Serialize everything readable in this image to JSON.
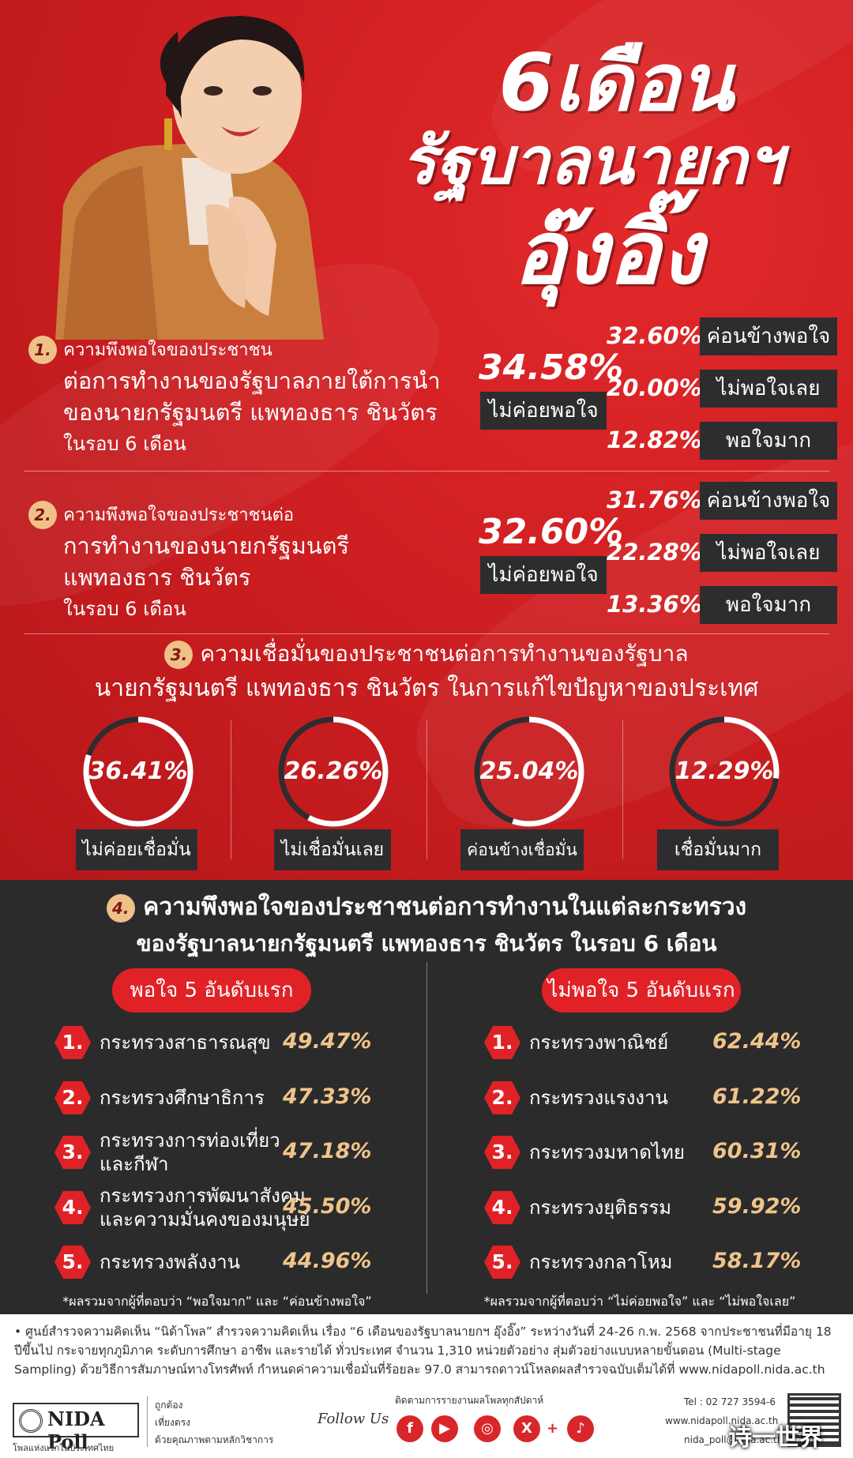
{
  "header": {
    "line1": "6เดือน",
    "line2": "รัฐบาลนายกฯ",
    "line3": "อุ๊งอิ๊ง"
  },
  "q1": {
    "num": "1.",
    "l1": "ความพึงพอใจของประชาชน",
    "l2": "ต่อการทำงานของรัฐบาลภายใต้การนำ",
    "l3": "ของนายกรัฐมนตรี แพทองธาร ชินวัตร",
    "l4": "ในรอบ 6 เดือน",
    "main_pct": "34.58%",
    "main_label": "ไม่ค่อยพอใจ",
    "items": [
      {
        "pct": "32.60%",
        "label": "ค่อนข้างพอใจ"
      },
      {
        "pct": "20.00%",
        "label": "ไม่พอใจเลย"
      },
      {
        "pct": "12.82%",
        "label": "พอใจมาก"
      }
    ]
  },
  "q2": {
    "num": "2.",
    "l1": "ความพึงพอใจของประชาชนต่อ",
    "l2": "การทำงานของนายกรัฐมนตรี",
    "l3": "แพทองธาร ชินวัตร",
    "l4": "ในรอบ 6 เดือน",
    "main_pct": "32.60%",
    "main_label": "ไม่ค่อยพอใจ",
    "items": [
      {
        "pct": "31.76%",
        "label": "ค่อนข้างพอใจ"
      },
      {
        "pct": "22.28%",
        "label": "ไม่พอใจเลย"
      },
      {
        "pct": "13.36%",
        "label": "พอใจมาก"
      }
    ]
  },
  "q3": {
    "num": "3.",
    "l1": "ความเชื่อมั่นของประชาชนต่อการทำงานของรัฐบาล",
    "l2": "นายกรัฐมนตรี แพทองธาร ชินวัตร ในการแก้ไขปัญหาของประเทศ",
    "items": [
      {
        "pct": "36.41%",
        "value": 36.41,
        "label": "ไม่ค่อยเชื่อมั่น"
      },
      {
        "pct": "26.26%",
        "value": 26.26,
        "label": "ไม่เชื่อมั่นเลย"
      },
      {
        "pct": "25.04%",
        "value": 25.04,
        "label": "ค่อนข้างเชื่อมั่น"
      },
      {
        "pct": "12.29%",
        "value": 12.29,
        "label": "เชื่อมั่นมาก"
      }
    ]
  },
  "q4": {
    "num": "4.",
    "l1": "ความพึงพอใจของประชาชนต่อการทำงานในแต่ละกระทรวง",
    "l2": "ของรัฐบาลนายกรัฐมนตรี แพทองธาร ชินวัตร ในรอบ 6 เดือน",
    "left": {
      "title": "พอใจ 5 อันดับแรก",
      "note": "*ผลรวมจากผู้ที่ตอบว่า “พอใจมาก” และ “ค่อนข้างพอใจ”",
      "items": [
        {
          "n": "1.",
          "name": "กระทรวงสาธารณสุข",
          "pct": "49.47%"
        },
        {
          "n": "2.",
          "name": "กระทรวงศึกษาธิการ",
          "pct": "47.33%"
        },
        {
          "n": "3.",
          "name": "กระทรวงการท่องเที่ยว\nและกีฬา",
          "pct": "47.18%"
        },
        {
          "n": "4.",
          "name": "กระทรวงการพัฒนาสังคม\nและความมั่นคงของมนุษย์",
          "pct": "45.50%"
        },
        {
          "n": "5.",
          "name": "กระทรวงพลังงาน",
          "pct": "44.96%"
        }
      ]
    },
    "right": {
      "title": "ไม่พอใจ 5 อันดับแรก",
      "note": "*ผลรวมจากผู้ที่ตอบว่า “ไม่ค่อยพอใจ” และ “ไม่พอใจเลย”",
      "items": [
        {
          "n": "1.",
          "name": "กระทรวงพาณิชย์",
          "pct": "62.44%"
        },
        {
          "n": "2.",
          "name": "กระทรวงแรงงาน",
          "pct": "61.22%"
        },
        {
          "n": "3.",
          "name": "กระทรวงมหาดไทย",
          "pct": "60.31%"
        },
        {
          "n": "4.",
          "name": "กระทรวงยุติธรรม",
          "pct": "59.92%"
        },
        {
          "n": "5.",
          "name": "กระทรวงกลาโหม",
          "pct": "58.17%"
        }
      ]
    }
  },
  "footer": {
    "text": "• ศูนย์สำรวจความคิดเห็น “นิด้าโพล” สำรวจความคิดเห็น เรื่อง “6 เดือนของรัฐบาลนายกฯ อุ๊งอิ๊ง” ระหว่างวันที่ 24-26 ก.พ. 2568 จากประชาชนที่มีอายุ 18 ปีขึ้นไป กระจายทุกภูมิภาค ระดับการศึกษา อาชีพ และรายได้ ทั่วประเทศ จำนวน 1,310 หน่วยตัวอย่าง สุ่มตัวอย่างแบบหลายขั้นตอน (Multi-stage Sampling) ด้วยวิธีการสัมภาษณ์ทางโทรศัพท์ กำหนดค่าความเชื่อมั่นที่ร้อยละ 97.0 สามารถดาวน์โหลดผลสำรวจฉบับเต็มได้ที่ www.nidapoll.nida.ac.th",
    "logo": "NIDA Poll",
    "logo_sub": "โพลแห่งแรกในประเทศไทย",
    "tag1": "ถูกต้อง",
    "tag2": "เที่ยงตรง",
    "tag3": "ด้วยคุณภาพตามหลักวิชาการ",
    "follow": "Follow Us",
    "follow_th": "ติดตามการรายงานผลโพลทุกสัปดาห์",
    "tel": "Tel : 02 727 3594-6",
    "web": "www.nidapoll.nida.ac.th",
    "email": "nida_poll@nida.ac.th",
    "watermark": "诗一世界"
  },
  "colors": {
    "red": "#d32124",
    "dark": "#2b2b2c",
    "gold": "#f0c48a"
  }
}
